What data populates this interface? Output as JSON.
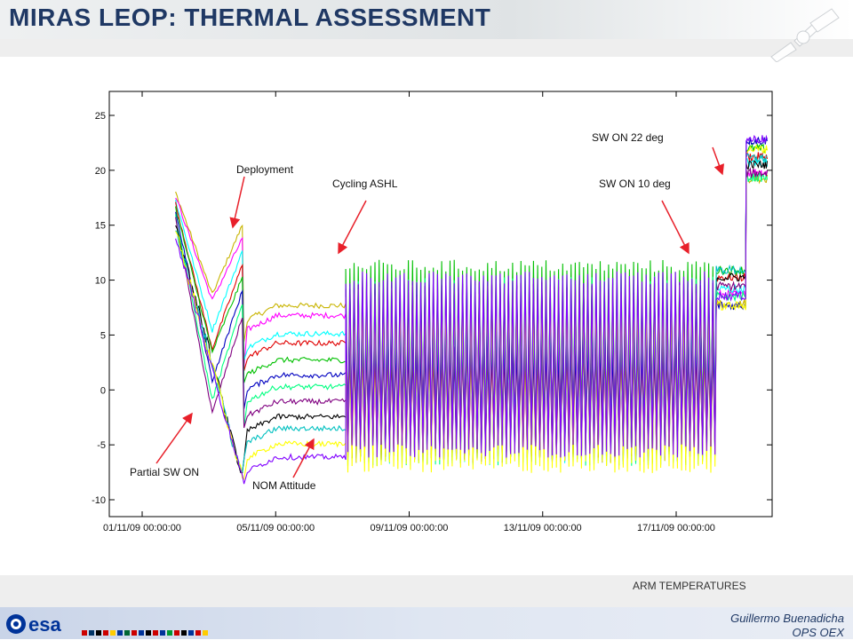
{
  "slide": {
    "title": "MIRAS LEOP: THERMAL ASSESSMENT",
    "caption": "ARM TEMPERATURES",
    "author": "Guillermo Buenadicha",
    "team": "OPS OEX",
    "logo_text": "esa"
  },
  "colors": {
    "title": "#1f3864",
    "arrow": "#e8202a",
    "series": [
      "#c8b400",
      "#ff00ff",
      "#00ffff",
      "#e00000",
      "#00c000",
      "#0000c0",
      "#00ff80",
      "#800080",
      "#000000",
      "#00c0c0",
      "#ffff00",
      "#8000ff"
    ]
  },
  "chart_data": {
    "type": "line",
    "title": "",
    "xlabel": "",
    "ylabel": "",
    "ylim": [
      -10,
      25
    ],
    "yticks": [
      25,
      20,
      15,
      10,
      5,
      0,
      -5,
      -10
    ],
    "xticks": [
      "01/11/09 00:00:00",
      "05/11/09 00:00:00",
      "09/11/09 00:00:00",
      "13/11/09 00:00:00",
      "17/11/09 00:00:00"
    ],
    "xlim_days": [
      0,
      18.75
    ],
    "series_note": "many arm temperature sensor traces",
    "phases": [
      {
        "name": "partial_sw_on",
        "from_day": 1.0,
        "to_day": 3.0,
        "top_start": 18,
        "bottom_end": -8
      },
      {
        "name": "deployment",
        "from_day": 3.0,
        "to_day": 3.0
      },
      {
        "name": "nom_attitude",
        "from_day": 3.0,
        "to_day": 6.1,
        "band": [
          -8,
          7.5
        ]
      },
      {
        "name": "cycling_ashl",
        "from_day": 6.1,
        "to_day": 17.2,
        "min": -7,
        "max": 12
      },
      {
        "name": "sw_on_10deg",
        "from_day": 17.2,
        "to_day": 18.1,
        "band": [
          7.5,
          11.5
        ]
      },
      {
        "name": "sw_on_22deg",
        "from_day": 18.1,
        "to_day": 18.75,
        "band": [
          19,
          23
        ]
      }
    ],
    "annotations": [
      {
        "text": "Deployment",
        "day": 3.0,
        "value": 15.5
      },
      {
        "text": "Cycling ASHL",
        "day": 6.1,
        "value": 12.5
      },
      {
        "text": "SW ON 22 deg",
        "day": 18.1,
        "value": 19.5
      },
      {
        "text": "SW ON 10 deg",
        "day": 17.2,
        "value": 12.5
      },
      {
        "text": "Partial SW ON",
        "day": 1.6,
        "value": -2
      },
      {
        "text": "NOM Attitude",
        "day": 5.2,
        "value": -4.5
      }
    ]
  }
}
